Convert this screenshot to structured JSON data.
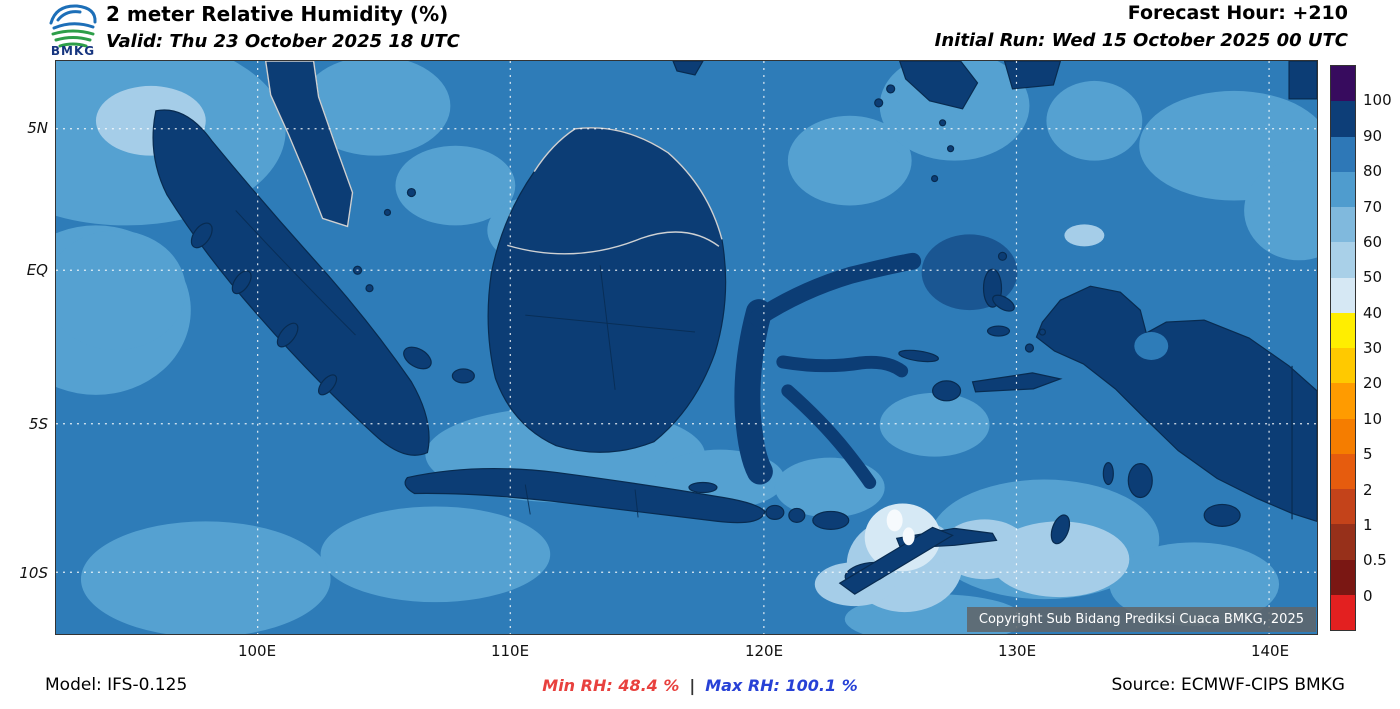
{
  "header": {
    "logo_label": "BMKG",
    "title": "2 meter Relative Humidity (%)",
    "valid": "Valid: Thu 23 October 2025 18 UTC",
    "forecast_hour": "Forecast Hour: +210",
    "initial_run": "Initial Run: Wed 15 October 2025 00 UTC"
  },
  "map": {
    "lat_labels": [
      "5N",
      "EQ",
      "5S",
      "10S"
    ],
    "lon_labels": [
      "100E",
      "110E",
      "120E",
      "130E",
      "140E"
    ],
    "copyright": "Copyright Sub Bidang Prediksi Cuaca BMKG, 2025"
  },
  "colorbar": {
    "ticks": [
      "100",
      "90",
      "80",
      "70",
      "60",
      "50",
      "40",
      "30",
      "20",
      "10",
      "5",
      "2",
      "1",
      "0.5",
      "0"
    ],
    "segments": [
      "#370b5e",
      "#0d3e78",
      "#2e78b7",
      "#4f9cce",
      "#80b9dd",
      "#a9d0e8",
      "#d6e8f4",
      "#ffee00",
      "#ffc900",
      "#ff9b00",
      "#f57d00",
      "#e65c0e",
      "#c4431a",
      "#97301a",
      "#7a1713",
      "#e32020"
    ]
  },
  "footer": {
    "model": "Model: IFS-0.125",
    "min_rh": "Min RH:  48.4 %",
    "separator": "|",
    "max_rh": "Max RH: 100.1 %",
    "source": "Source: ECMWF-CIPS BMKG",
    "min_color": "#e8413e",
    "max_color": "#2741d6"
  },
  "chart_data": {
    "type": "heatmap",
    "title": "2 meter Relative Humidity (%)",
    "units": "%",
    "lat_ticks": [
      "5N",
      "EQ",
      "5S",
      "10S"
    ],
    "lon_ticks": [
      "100E",
      "110E",
      "120E",
      "130E",
      "140E"
    ],
    "colorbar_levels": [
      100,
      90,
      80,
      70,
      60,
      50,
      40,
      30,
      20,
      10,
      5,
      2,
      1,
      0.5,
      0
    ],
    "min_rh_percent": 48.4,
    "max_rh_percent": 100.1,
    "model": "IFS-0.125",
    "source": "ECMWF-CIPS BMKG",
    "forecast_hour": 210,
    "valid_time": "Thu 23 October 2025 18 UTC",
    "initial_run": "Wed 15 October 2025 00 UTC"
  }
}
